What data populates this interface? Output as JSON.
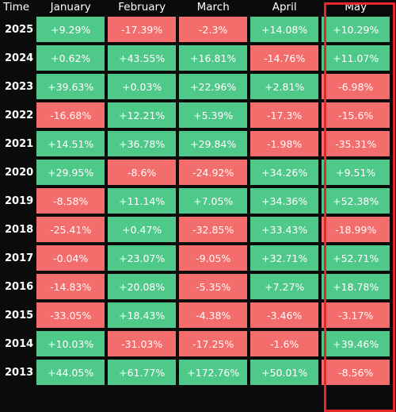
{
  "header": {
    "time_label": "Time",
    "months": [
      "January",
      "February",
      "March",
      "April",
      "May"
    ]
  },
  "rows": [
    {
      "year": "2025",
      "values": [
        "+9.29%",
        "-17.39%",
        "-2.3%",
        "+14.08%",
        "+10.29%"
      ]
    },
    {
      "year": "2024",
      "values": [
        "+0.62%",
        "+43.55%",
        "+16.81%",
        "-14.76%",
        "+11.07%"
      ]
    },
    {
      "year": "2023",
      "values": [
        "+39.63%",
        "+0.03%",
        "+22.96%",
        "+2.81%",
        "-6.98%"
      ]
    },
    {
      "year": "2022",
      "values": [
        "-16.68%",
        "+12.21%",
        "+5.39%",
        "-17.3%",
        "-15.6%"
      ]
    },
    {
      "year": "2021",
      "values": [
        "+14.51%",
        "+36.78%",
        "+29.84%",
        "-1.98%",
        "-35.31%"
      ]
    },
    {
      "year": "2020",
      "values": [
        "+29.95%",
        "-8.6%",
        "-24.92%",
        "+34.26%",
        "+9.51%"
      ]
    },
    {
      "year": "2019",
      "values": [
        "-8.58%",
        "+11.14%",
        "+7.05%",
        "+34.36%",
        "+52.38%"
      ]
    },
    {
      "year": "2018",
      "values": [
        "-25.41%",
        "+0.47%",
        "-32.85%",
        "+33.43%",
        "-18.99%"
      ]
    },
    {
      "year": "2017",
      "values": [
        "-0.04%",
        "+23.07%",
        "-9.05%",
        "+32.71%",
        "+52.71%"
      ]
    },
    {
      "year": "2016",
      "values": [
        "-14.83%",
        "+20.08%",
        "-5.35%",
        "+7.27%",
        "+18.78%"
      ]
    },
    {
      "year": "2015",
      "values": [
        "-33.05%",
        "+18.43%",
        "-4.38%",
        "-3.46%",
        "-3.17%"
      ]
    },
    {
      "year": "2014",
      "values": [
        "+10.03%",
        "-31.03%",
        "-17.25%",
        "-1.6%",
        "+39.46%"
      ]
    },
    {
      "year": "2013",
      "values": [
        "+44.05%",
        "+61.77%",
        "+172.76%",
        "+50.01%",
        "-8.56%"
      ]
    }
  ],
  "colors": {
    "positive": "#4ec98a",
    "negative": "#f36d6d",
    "highlight_border": "#e8252c",
    "background": "#0b0b0b"
  },
  "highlighted_column": "May"
}
